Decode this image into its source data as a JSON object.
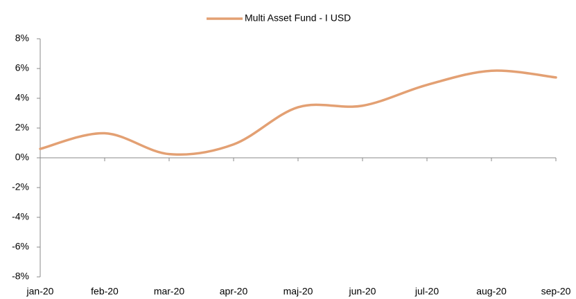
{
  "chart_data": {
    "type": "line",
    "categories": [
      "jan-20",
      "feb-20",
      "mar-20",
      "apr-20",
      "maj-20",
      "jun-20",
      "jul-20",
      "aug-20",
      "sep-20"
    ],
    "series": [
      {
        "name": "Multi Asset Fund - I USD",
        "color": "#e3a073",
        "values": [
          0.6,
          1.65,
          0.25,
          0.9,
          3.4,
          3.5,
          4.9,
          5.85,
          5.4
        ]
      }
    ],
    "ylim": [
      -8,
      8
    ],
    "yticks": [
      {
        "value": -8,
        "label": "-8%"
      },
      {
        "value": -6,
        "label": "-6%"
      },
      {
        "value": -4,
        "label": "-4%"
      },
      {
        "value": -2,
        "label": "-2%"
      },
      {
        "value": 0,
        "label": "0%"
      },
      {
        "value": 2,
        "label": "2%"
      },
      {
        "value": 4,
        "label": "4%"
      },
      {
        "value": 6,
        "label": "6%"
      },
      {
        "value": 8,
        "label": "8%"
      }
    ],
    "legend": "top",
    "grid": false
  }
}
